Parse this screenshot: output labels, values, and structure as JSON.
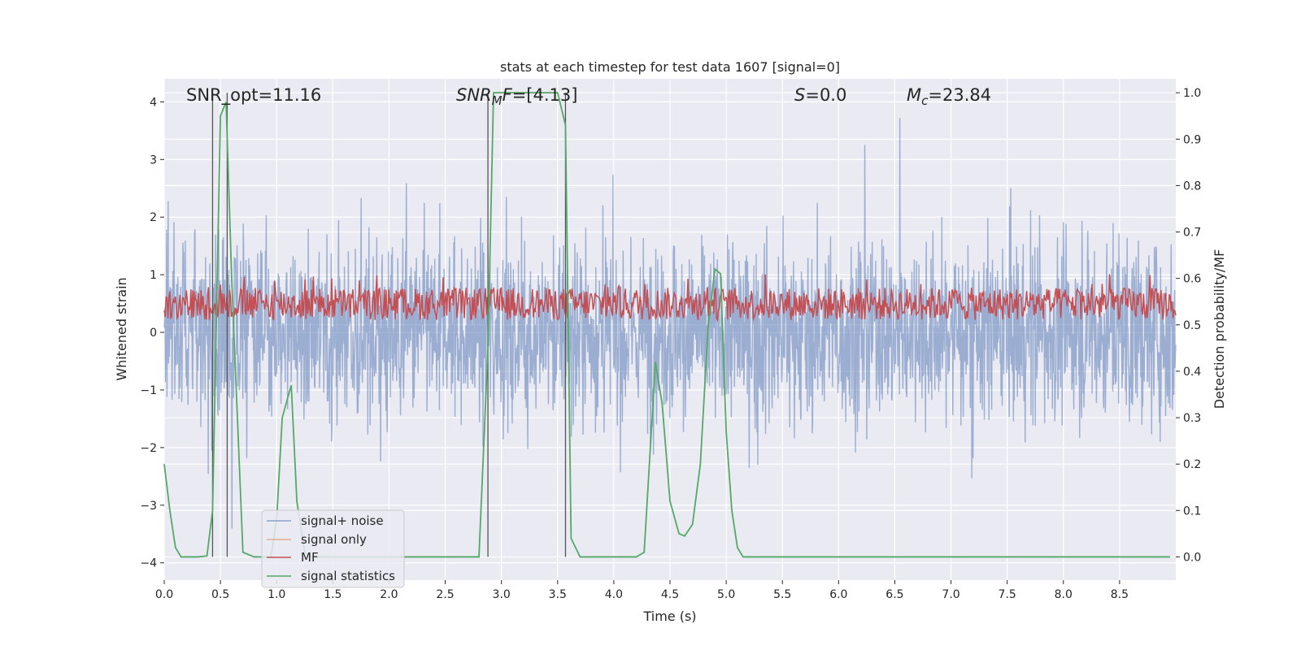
{
  "chart_data": {
    "type": "line",
    "title": "stats at each timestep for test data 1607 [signal=0]",
    "xlabel": "Time (s)",
    "ylabel_left": "Whitened strain",
    "ylabel_right": "Detection probability/MF",
    "xlim": [
      0.0,
      9.0
    ],
    "ylim_left": [
      -4.3,
      4.4
    ],
    "ylim_right": [
      -0.05,
      1.03
    ],
    "xticks": [
      "0.0",
      "0.5",
      "1.0",
      "1.5",
      "2.0",
      "2.5",
      "3.0",
      "3.5",
      "4.0",
      "4.5",
      "5.0",
      "5.5",
      "6.0",
      "6.5",
      "7.0",
      "7.5",
      "8.0",
      "8.5"
    ],
    "yticks_left": [
      "4",
      "3",
      "2",
      "1",
      "0",
      "−1",
      "−2",
      "−3",
      "−4"
    ],
    "yticks_right": [
      "1.0",
      "0.9",
      "0.8",
      "0.7",
      "0.6",
      "0.5",
      "0.4",
      "0.3",
      "0.2",
      "0.1",
      "0.0"
    ],
    "grid": true,
    "legend_position": "lower-left",
    "annotations": {
      "snr_opt": "SNR_opt=11.16",
      "snr_mf": "=[4.13]",
      "s": "=0.0",
      "mc": "=23.84"
    },
    "vertical_markers": [
      0.43,
      0.56,
      2.88,
      3.57
    ],
    "series": [
      {
        "name": "signal+ noise",
        "color": "#4c72b0",
        "alpha": 0.5,
        "axis": "left",
        "description": "whitened strain noise, amplitude ~±2.5 with spikes up to 4"
      },
      {
        "name": "signal only",
        "color": "#dd8452",
        "axis": "left",
        "values": []
      },
      {
        "name": "MF",
        "color": "#c44e52",
        "axis": "right",
        "description": "matched filter output, fluctuating ~0.5–0.6"
      },
      {
        "name": "signal statistics",
        "color": "#55a868",
        "axis": "right",
        "x": [
          0.0,
          0.05,
          0.1,
          0.15,
          0.2,
          0.3,
          0.38,
          0.43,
          0.5,
          0.55,
          0.6,
          0.7,
          0.8,
          0.9,
          0.95,
          1.0,
          1.05,
          1.13,
          1.18,
          1.25,
          1.3,
          1.5,
          2.0,
          2.5,
          2.8,
          2.88,
          2.93,
          3.0,
          3.3,
          3.5,
          3.57,
          3.62,
          3.7,
          3.8,
          4.0,
          4.2,
          4.27,
          4.37,
          4.43,
          4.5,
          4.58,
          4.63,
          4.7,
          4.77,
          4.84,
          4.9,
          4.95,
          5.0,
          5.05,
          5.1,
          5.15,
          6.0,
          7.0,
          8.0,
          8.95
        ],
        "values": [
          0.2,
          0.1,
          0.02,
          0.0,
          0.0,
          0.0,
          0.002,
          0.1,
          0.95,
          0.98,
          0.6,
          0.01,
          0.0,
          0.0,
          0.0,
          0.08,
          0.3,
          0.37,
          0.12,
          0.01,
          0.0,
          0.0,
          0.0,
          0.0,
          0.0,
          0.45,
          1.0,
          1.0,
          1.0,
          1.0,
          0.93,
          0.04,
          0.0,
          0.0,
          0.0,
          0.0,
          0.01,
          0.42,
          0.33,
          0.12,
          0.05,
          0.045,
          0.07,
          0.2,
          0.5,
          0.62,
          0.61,
          0.27,
          0.1,
          0.02,
          0.0,
          0.0,
          0.0,
          0.0,
          0.0
        ]
      }
    ]
  }
}
